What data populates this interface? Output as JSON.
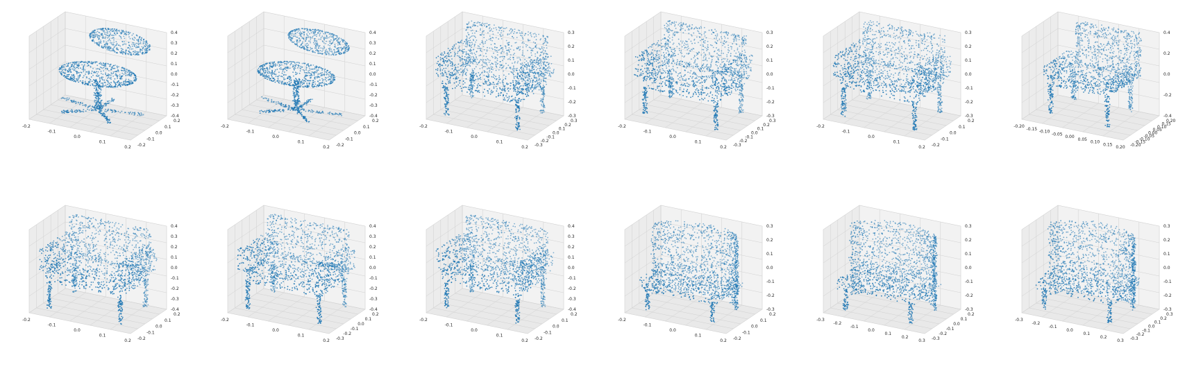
{
  "figure": {
    "rows": 2,
    "cols": 6,
    "point_color": "#1f77b4",
    "pane_color": "#f2f2f2",
    "grid_color": "#d0d0d0"
  },
  "chart_data": [
    {
      "type": "scatter",
      "projection": "3d",
      "shape": "swivel-chair",
      "x_ticks": [
        "-0.2",
        "-0.1",
        "0.0",
        "0.1",
        "0.2"
      ],
      "y_ticks": [
        "-0.2",
        "-0.1",
        "0.0",
        "0.1",
        "0.2"
      ],
      "z_ticks": [
        "0.4",
        "0.3",
        "0.2",
        "0.1",
        "0.0",
        "-0.1",
        "-0.2",
        "-0.3",
        "-0.4"
      ]
    },
    {
      "type": "scatter",
      "projection": "3d",
      "shape": "swivel-chair",
      "x_ticks": [
        "-0.2",
        "-0.1",
        "0.0",
        "0.1",
        "0.2"
      ],
      "y_ticks": [
        "-0.2",
        "-0.1",
        "0.0",
        "0.1",
        "0.2"
      ],
      "z_ticks": [
        "0.4",
        "0.3",
        "0.2",
        "0.1",
        "0.0",
        "-0.1",
        "-0.2",
        "-0.3",
        "-0.4"
      ]
    },
    {
      "type": "scatter",
      "projection": "3d",
      "shape": "armchair",
      "x_ticks": [
        "-0.2",
        "-0.1",
        "0.0",
        "0.1",
        "0.2"
      ],
      "y_ticks": [
        "-0.3",
        "-0.2",
        "-0.1",
        "0.0",
        "0.1",
        "0.2",
        "0.3"
      ],
      "z_ticks": [
        "0.3",
        "0.2",
        "0.1",
        "0.0",
        "-0.1",
        "-0.2",
        "-0.3"
      ]
    },
    {
      "type": "scatter",
      "projection": "3d",
      "shape": "armchair",
      "x_ticks": [
        "-0.2",
        "-0.1",
        "0.0",
        "0.1",
        "0.2"
      ],
      "y_ticks": [
        "-0.3",
        "-0.2",
        "-0.1",
        "0.0",
        "0.1",
        "0.2",
        "0.3"
      ],
      "z_ticks": [
        "0.3",
        "0.2",
        "0.1",
        "0.0",
        "-0.1",
        "-0.2",
        "-0.3"
      ]
    },
    {
      "type": "scatter",
      "projection": "3d",
      "shape": "armchair",
      "x_ticks": [
        "-0.2",
        "-0.1",
        "0.0",
        "0.1",
        "0.2"
      ],
      "y_ticks": [
        "-0.2",
        "-0.1",
        "0.0",
        "0.1",
        "0.2"
      ],
      "z_ticks": [
        "0.3",
        "0.2",
        "0.1",
        "0.0",
        "-0.1",
        "-0.2",
        "-0.3"
      ]
    },
    {
      "type": "scatter",
      "projection": "3d",
      "shape": "high-back-chair",
      "x_ticks": [
        "-0.20",
        "-0.15",
        "-0.10",
        "-0.05",
        "0.00",
        "0.05",
        "0.10",
        "0.15",
        "0.20"
      ],
      "y_ticks": [
        "-0.20",
        "-0.15",
        "-0.10",
        "-0.05",
        "0.00",
        "0.05",
        "0.10",
        "0.15",
        "0.20"
      ],
      "z_ticks": [
        "0.4",
        "0.2",
        "0.0",
        "-0.2",
        "-0.4"
      ]
    },
    {
      "type": "scatter",
      "projection": "3d",
      "shape": "armchair",
      "x_ticks": [
        "-0.2",
        "-0.1",
        "0.0",
        "0.1",
        "0.2"
      ],
      "y_ticks": [
        "-0.2",
        "-0.1",
        "0.0",
        "0.1",
        "0.2"
      ],
      "z_ticks": [
        "0.4",
        "0.3",
        "0.2",
        "0.1",
        "0.0",
        "-0.1",
        "-0.2",
        "-0.3",
        "-0.4"
      ]
    },
    {
      "type": "scatter",
      "projection": "3d",
      "shape": "armchair",
      "x_ticks": [
        "-0.2",
        "-0.1",
        "0.0",
        "0.1",
        "0.2"
      ],
      "y_ticks": [
        "-0.3",
        "-0.2",
        "-0.1",
        "0.0",
        "0.1",
        "0.2"
      ],
      "z_ticks": [
        "0.4",
        "0.3",
        "0.2",
        "0.1",
        "0.0",
        "-0.1",
        "-0.2",
        "-0.3",
        "-0.4"
      ]
    },
    {
      "type": "scatter",
      "projection": "3d",
      "shape": "armchair",
      "x_ticks": [
        "-0.2",
        "-0.1",
        "0.0",
        "0.1",
        "0.2"
      ],
      "y_ticks": [
        "-0.2",
        "-0.1",
        "0.0",
        "0.1",
        "0.2"
      ],
      "z_ticks": [
        "0.4",
        "0.3",
        "0.2",
        "0.1",
        "0.0",
        "-0.1",
        "-0.2",
        "-0.3",
        "-0.4"
      ]
    },
    {
      "type": "scatter",
      "projection": "3d",
      "shape": "tub-chair",
      "x_ticks": [
        "-0.2",
        "-0.1",
        "0.0",
        "0.1",
        "0.2"
      ],
      "y_ticks": [
        "-0.2",
        "-0.1",
        "0.0",
        "0.1",
        "0.2"
      ],
      "z_ticks": [
        "0.3",
        "0.2",
        "0.1",
        "0.0",
        "-0.1",
        "-0.2",
        "-0.3"
      ]
    },
    {
      "type": "scatter",
      "projection": "3d",
      "shape": "tub-chair",
      "x_ticks": [
        "-0.3",
        "-0.2",
        "-0.1",
        "0.0",
        "0.1",
        "0.2",
        "0.3"
      ],
      "y_ticks": [
        "-0.3",
        "-0.2",
        "-0.1",
        "0.0",
        "0.1",
        "0.2"
      ],
      "z_ticks": [
        "0.3",
        "0.2",
        "0.1",
        "0.0",
        "-0.1",
        "-0.2",
        "-0.3"
      ]
    },
    {
      "type": "scatter",
      "projection": "3d",
      "shape": "tub-chair",
      "x_ticks": [
        "-0.3",
        "-0.2",
        "-0.1",
        "0.0",
        "0.1",
        "0.2",
        "0.3"
      ],
      "y_ticks": [
        "-0.3",
        "-0.2",
        "-0.1",
        "0.0",
        "0.1",
        "0.2",
        "0.3"
      ],
      "z_ticks": [
        "0.3",
        "0.2",
        "0.1",
        "0.0",
        "-0.1",
        "-0.2",
        "-0.3"
      ]
    }
  ]
}
